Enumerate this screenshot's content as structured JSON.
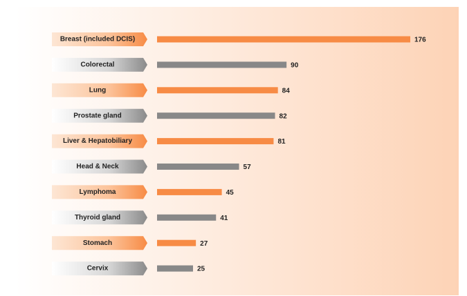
{
  "chart_data": {
    "type": "bar",
    "categories": [
      "Breast (included DCIS)",
      "Colorectal",
      "Lung",
      "Prostate gland",
      "Liver & Hepatobiliary",
      "Head & Neck",
      "Lymphoma",
      "Thyroid gland",
      "Stomach",
      "Cervix"
    ],
    "values": [
      176,
      90,
      84,
      82,
      81,
      57,
      45,
      41,
      27,
      25
    ],
    "colors": [
      "#f78b45",
      "#888888",
      "#f78b45",
      "#888888",
      "#f78b45",
      "#888888",
      "#f78b45",
      "#888888",
      "#f78b45",
      "#888888"
    ]
  }
}
